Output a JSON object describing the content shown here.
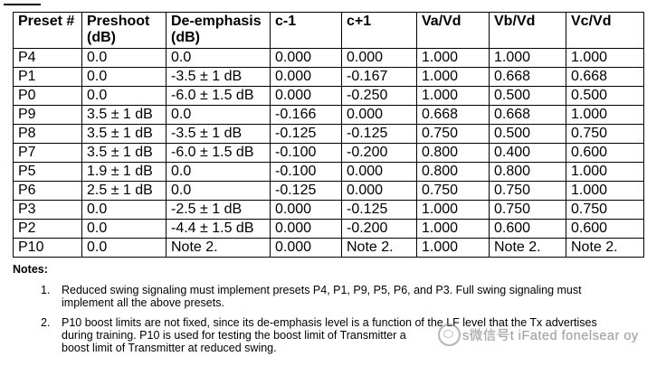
{
  "table": {
    "headers": [
      {
        "line1": "Preset #",
        "line2": ""
      },
      {
        "line1": "Preshoot",
        "line2": "(dB)"
      },
      {
        "line1": "De-emphasis",
        "line2": "(dB)"
      },
      {
        "line1": "c-1",
        "line2": ""
      },
      {
        "line1": "c+1",
        "line2": ""
      },
      {
        "line1": "Va/Vd",
        "line2": ""
      },
      {
        "line1": "Vb/Vd",
        "line2": ""
      },
      {
        "line1": "Vc/Vd",
        "line2": ""
      }
    ],
    "rows": [
      [
        "P4",
        "0.0",
        "0.0",
        "0.000",
        "0.000",
        "1.000",
        "1.000",
        "1.000"
      ],
      [
        "P1",
        "0.0",
        "-3.5 ± 1 dB",
        "0.000",
        "-0.167",
        "1.000",
        "0.668",
        "0.668"
      ],
      [
        "P0",
        "0.0",
        "-6.0 ± 1.5 dB",
        "0.000",
        "-0.250",
        "1.000",
        "0.500",
        "0.500"
      ],
      [
        "P9",
        "3.5 ± 1 dB",
        "0.0",
        "-0.166",
        "0.000",
        "0.668",
        "0.668",
        "1.000"
      ],
      [
        "P8",
        "3.5 ± 1 dB",
        "-3.5 ± 1 dB",
        "-0.125",
        "-0.125",
        "0.750",
        "0.500",
        "0.750"
      ],
      [
        "P7",
        "3.5 ± 1 dB",
        "-6.0 ± 1.5 dB",
        "-0.100",
        "-0.200",
        "0.800",
        "0.400",
        "0.600"
      ],
      [
        "P5",
        "1.9 ± 1 dB",
        "0.0",
        "-0.100",
        "0.000",
        "0.800",
        "0.800",
        "1.000"
      ],
      [
        "P6",
        "2.5 ± 1 dB",
        "0.0",
        "-0.125",
        "0.000",
        "0.750",
        "0.750",
        "1.000"
      ],
      [
        "P3",
        "0.0",
        "-2.5 ± 1 dB",
        "0.000",
        "-0.125",
        "1.000",
        "0.750",
        "0.750"
      ],
      [
        "P2",
        "0.0",
        "-4.4 ± 1.5 dB",
        "0.000",
        "-0.200",
        "1.000",
        "0.600",
        "0.600"
      ],
      [
        "P10",
        "0.0",
        "Note 2.",
        "0.000",
        "Note 2.",
        "1.000",
        "Note 2.",
        "Note 2."
      ]
    ]
  },
  "notes": {
    "heading": "Notes:",
    "items": [
      {
        "num": "1.",
        "lines": [
          "Reduced swing signaling must implement presets P4, P1, P9, P5, P6, and P3. Full swing signaling must",
          "implement all the above presets."
        ]
      },
      {
        "num": "2.",
        "lines": [
          "P10 boost limits are not fixed, since its de-emphasis level is a function of the LF level that the Tx advertises",
          "during training. P10 is used for testing the boost limit of Transmitter a",
          "boost limit of Transmitter at reduced swing."
        ]
      }
    ]
  },
  "watermark": {
    "icon": "wechat-icon",
    "text": "s微信号t iFated fonelsear oy"
  },
  "colors": {
    "text": "#000000",
    "border": "#000000",
    "background": "#ffffff",
    "watermark": "#8a8a8a"
  }
}
